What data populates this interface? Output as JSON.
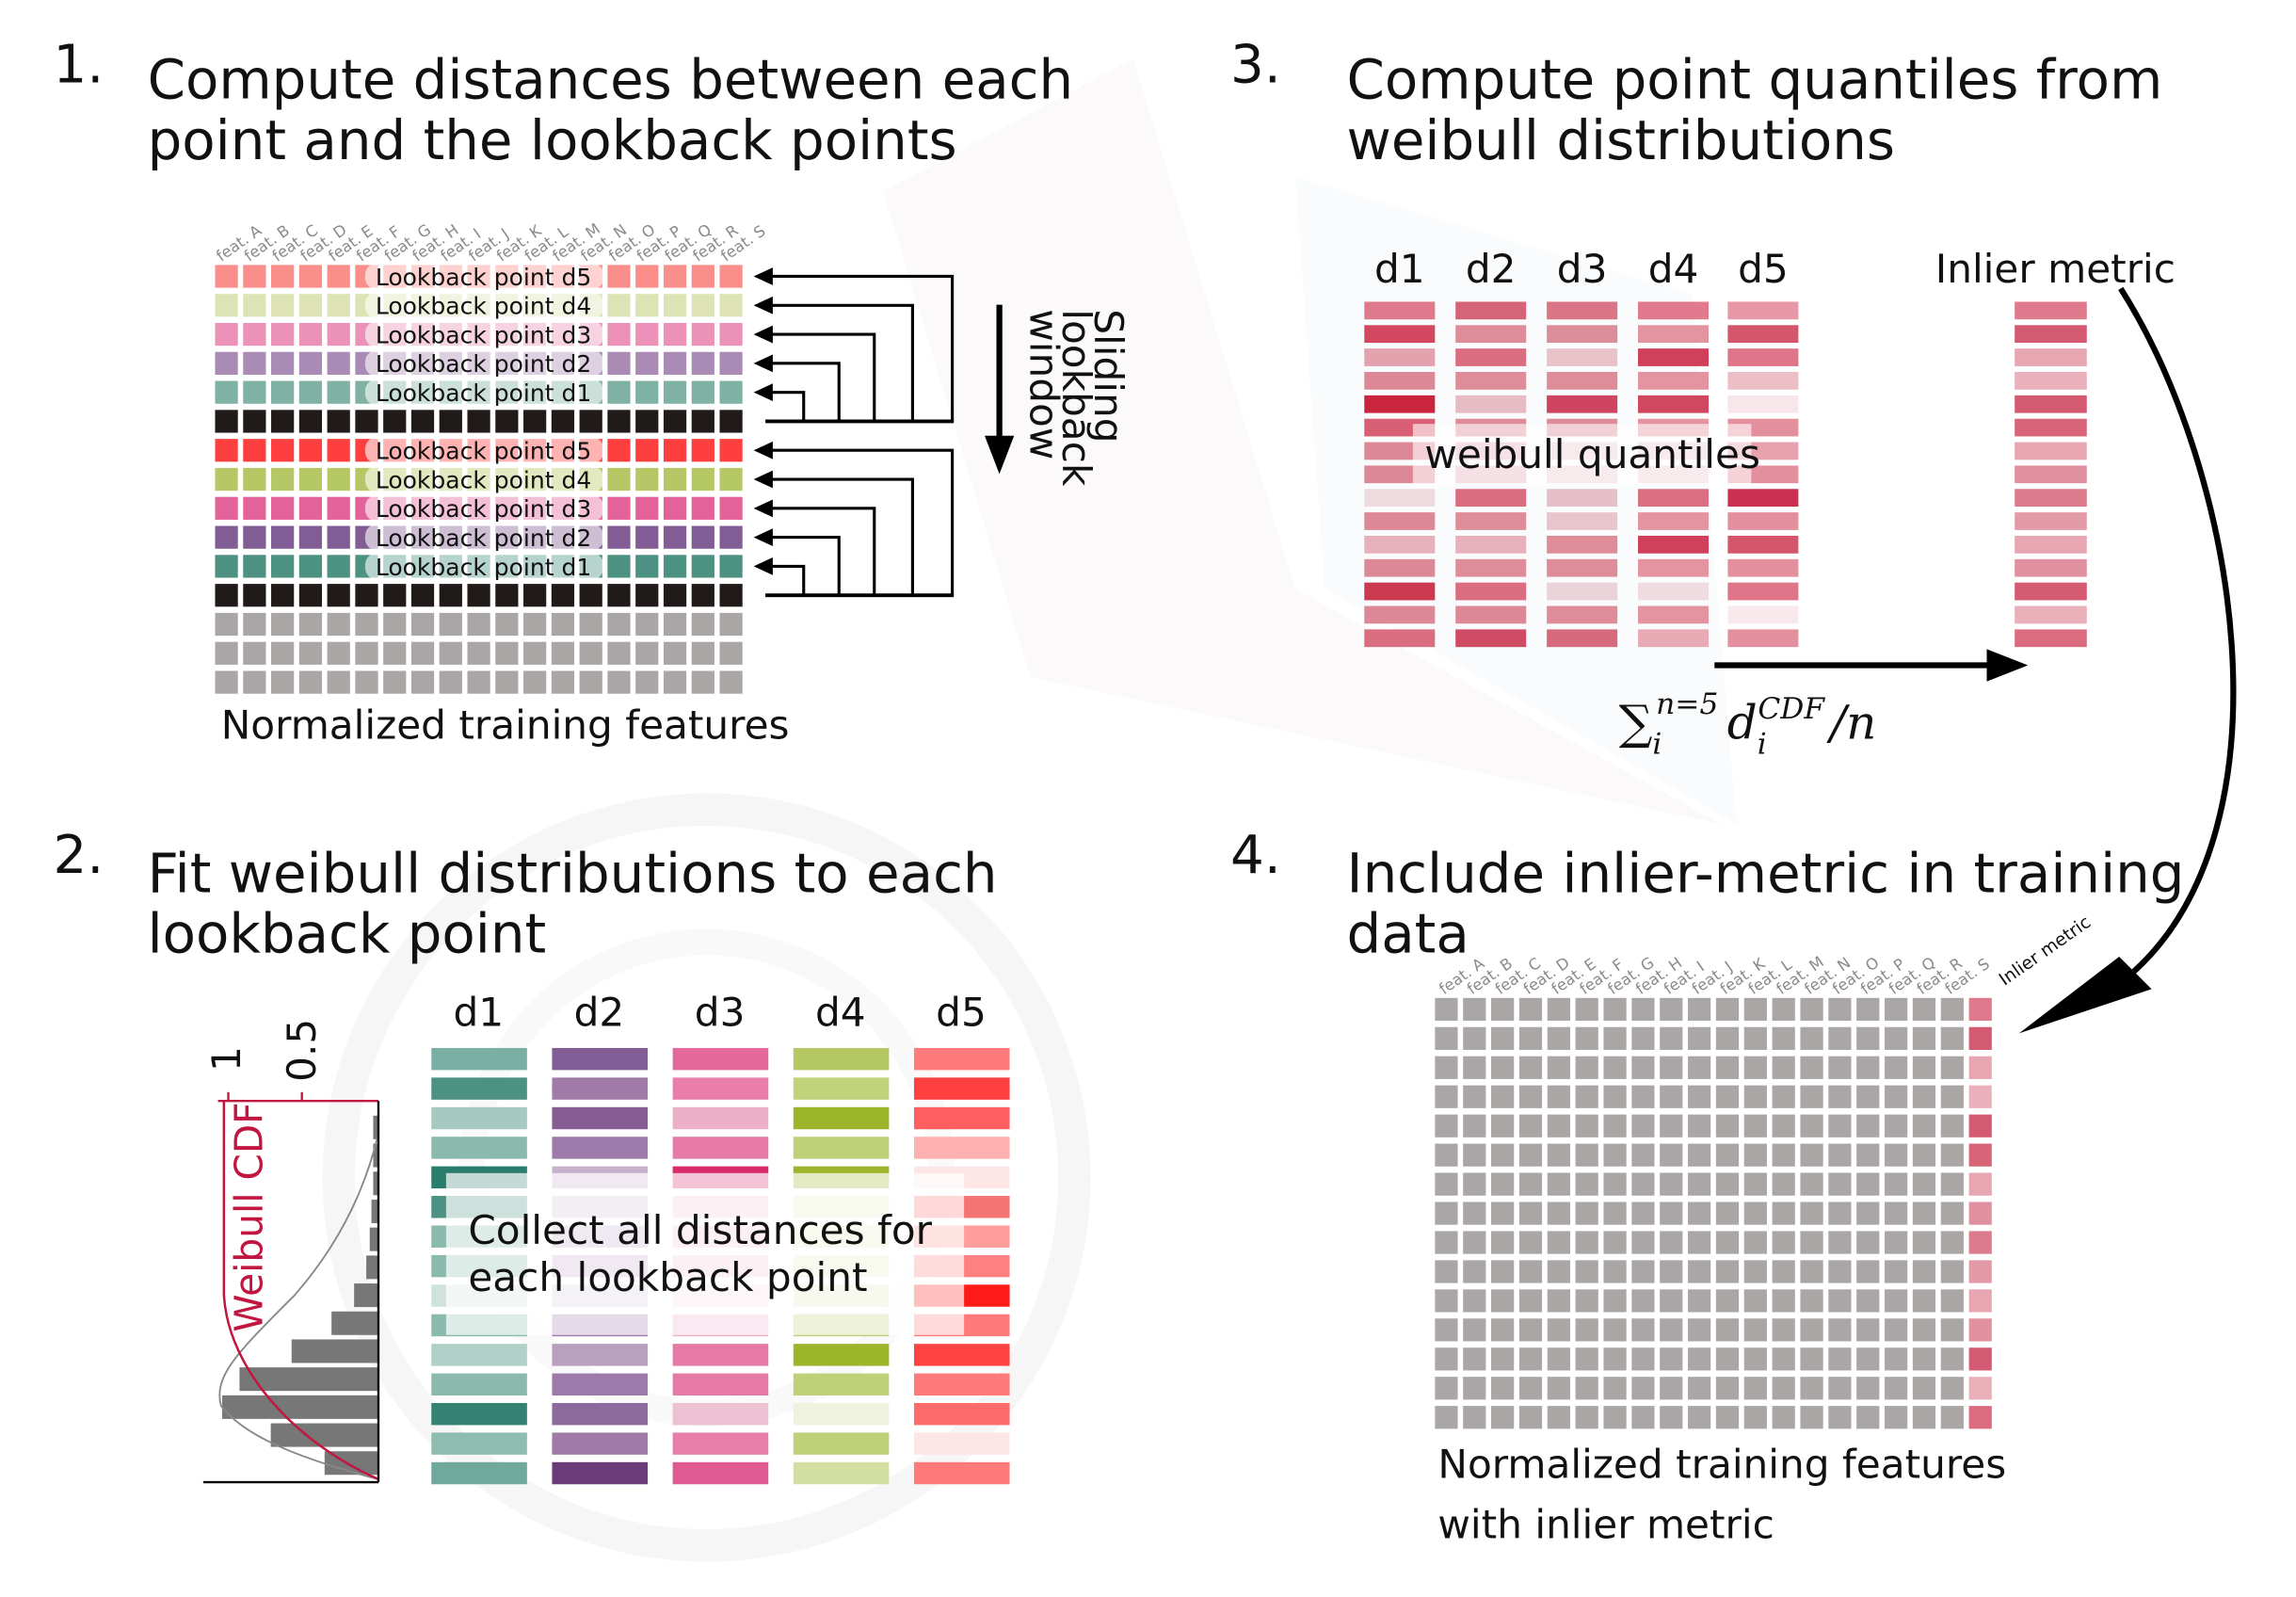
{
  "panel1": {
    "number": "1.",
    "title_line1": "Compute distances between each",
    "title_line2": "point and the lookback points",
    "features": [
      "feat. A",
      "feat. B",
      "feat. C",
      "feat. D",
      "feat. E",
      "feat. F",
      "feat. G",
      "feat. H",
      "feat. I",
      "feat. J",
      "feat. K",
      "feat. L",
      "feat. M",
      "feat. N",
      "feat. O",
      "feat. P",
      "feat. Q",
      "feat. R",
      "feat. S"
    ],
    "lookback_labels": [
      "Lookback point d5",
      "Lookback point d4",
      "Lookback point d3",
      "Lookback point d2",
      "Lookback point d1"
    ],
    "row_colors": [
      "#f98e8a",
      "#dde3b5",
      "#ec91b7",
      "#aa8bb5",
      "#7fb1a4",
      "#201a18",
      "#fe3f3f",
      "#b6c865",
      "#e3629a",
      "#825c94",
      "#4c9182",
      "#201a18",
      "#aaa6a6",
      "#aaa6a6",
      "#aaa6a6"
    ],
    "window_label": [
      "Sliding",
      "lookback",
      "window"
    ],
    "caption": "Normalized training features"
  },
  "panel2": {
    "number": "2.",
    "title_line1": "Fit weibull distributions to each",
    "title_line2": "lookback point",
    "column_labels": [
      "d1",
      "d2",
      "d3",
      "d4",
      "d5"
    ],
    "columns": [
      [
        "#7aafa3",
        "#4c9182",
        "#a6c9c1",
        "#8ab9ae",
        "#2a7c6c",
        "#4c9182",
        "#8ab9ae",
        "#8ab9ae",
        "#cfe2dd",
        "#8ab9ae",
        "#b0d0c8",
        "#8ab9ae",
        "#348272",
        "#8fbcb1",
        "#6fa99b"
      ],
      [
        "#825c94",
        "#a07ba8",
        "#855d93",
        "#9e7aab",
        "#c8b1cc",
        "#d0c0d8",
        "#c5afcc",
        "#c8b1cc",
        "#d8cce0",
        "#9e7aab",
        "#b9a0bf",
        "#9e7aab",
        "#8d6a9c",
        "#a07ba8",
        "#6b3b78"
      ],
      [
        "#e5699b",
        "#ea7eaa",
        "#ecb0c8",
        "#e67ba8",
        "#d92a6c",
        "#f2c8da",
        "#f2c8da",
        "#f2c8da",
        "#f5dfe8",
        "#ecb0c8",
        "#e57aa6",
        "#e57aa6",
        "#ecc2d2",
        "#e87faa",
        "#e05a92"
      ],
      [
        "#b6c865",
        "#c0d27a",
        "#9cb52a",
        "#bed178",
        "#9cb52a",
        "#e5ecc9",
        "#e5ecc9",
        "#e5ecc9",
        "#e0e9c2",
        "#bed178",
        "#9cb52a",
        "#bed178",
        "#eef2de",
        "#bed178",
        "#d3dfa0"
      ],
      [
        "#ff7b7b",
        "#ff4040",
        "#ff5f5f",
        "#ffb0b0",
        "#ffe6e6",
        "#f47474",
        "#ff9c9c",
        "#ff8080",
        "#ff1a1a",
        "#ff7a7a",
        "#ff4343",
        "#ff7b7b",
        "#ff6b6b",
        "#ffe6e6",
        "#ff7b7b"
      ]
    ],
    "overlay_line1": "Collect all distances for",
    "overlay_line2": "each lookback point",
    "cdf_label": "Weibull CDF",
    "cdf_ticks": [
      "1",
      "0.5"
    ],
    "cdf_color": "#c0163f",
    "histogram": [
      0.03,
      0.03,
      0.03,
      0.04,
      0.05,
      0.07,
      0.14,
      0.27,
      0.5,
      0.8,
      0.9,
      0.62,
      0.31
    ]
  },
  "panel3": {
    "number": "3.",
    "title_line1": "Compute point quantiles from",
    "title_line2": "weibull distributions",
    "column_labels": [
      "d1",
      "d2",
      "d3",
      "d4",
      "d5"
    ],
    "inlier_label": "Inlier metric",
    "columns": [
      [
        "#de7a8b",
        "#d3485e",
        "#e4a1ae",
        "#dd8896",
        "#c9253f",
        "#d96074",
        "#dd8896",
        "#dd8896",
        "#eedbe0",
        "#dd8896",
        "#e6b1bb",
        "#dd8896",
        "#cc3a52",
        "#dd8896",
        "#da6e80"
      ],
      [
        "#d66478",
        "#de8c99",
        "#da6d80",
        "#de8c99",
        "#e6bcc4",
        "#de8c99",
        "#e5b4bf",
        "#e5b4bf",
        "#da6e80",
        "#de8c99",
        "#e6b1bb",
        "#de8c99",
        "#da6e80",
        "#dd8896",
        "#cf4a63"
      ],
      [
        "#d97585",
        "#dc8d9a",
        "#e9c1c9",
        "#dd8c98",
        "#cf4560",
        "#dd8c98",
        "#eacdd3",
        "#eacdd3",
        "#e6c0c8",
        "#e8c5cc",
        "#dd8c98",
        "#dd8c98",
        "#ead3d8",
        "#dd8c98",
        "#d66a7c"
      ],
      [
        "#e07a8c",
        "#e493a0",
        "#d0405a",
        "#e493a0",
        "#d0485f",
        "#e493a0",
        "#eecdd4",
        "#eecdd4",
        "#d96f81",
        "#e493a0",
        "#d0405a",
        "#e493a0",
        "#f0dce0",
        "#e493a0",
        "#e8aab5"
      ],
      [
        "#e797a5",
        "#d3566b",
        "#de7588",
        "#ecbfc6",
        "#f7e6ea",
        "#e38f9d",
        "#e8a2ae",
        "#e38f9d",
        "#cc3050",
        "#e38f9d",
        "#d3566b",
        "#e38f9d",
        "#de7588",
        "#f7e9ec",
        "#e38f9d"
      ]
    ],
    "inlier_column": [
      "#de7a8b",
      "#d35a70",
      "#e6a6b2",
      "#eab0bb",
      "#d35a70",
      "#d86478",
      "#e6a6b2",
      "#e0909e",
      "#db7b8c",
      "#e39aa7",
      "#e6a6b2",
      "#e0909e",
      "#d35a70",
      "#e9b0ba",
      "#db6b7f"
    ],
    "overlay_label": "weibull quantiles",
    "formula": {
      "sum": "∑",
      "sub": "i",
      "sup": "n=5",
      "term": "d",
      "term_sub": "i",
      "term_sup": "CDF",
      "tail": "/n"
    }
  },
  "panel4": {
    "number": "4.",
    "title_line1": "Include inlier-metric in training",
    "title_line2": "data",
    "inlier_header": "Inlier metric",
    "feature_color": "#aaa6a6",
    "caption_line1": "Normalized training features",
    "caption_line2": "with inlier metric"
  }
}
